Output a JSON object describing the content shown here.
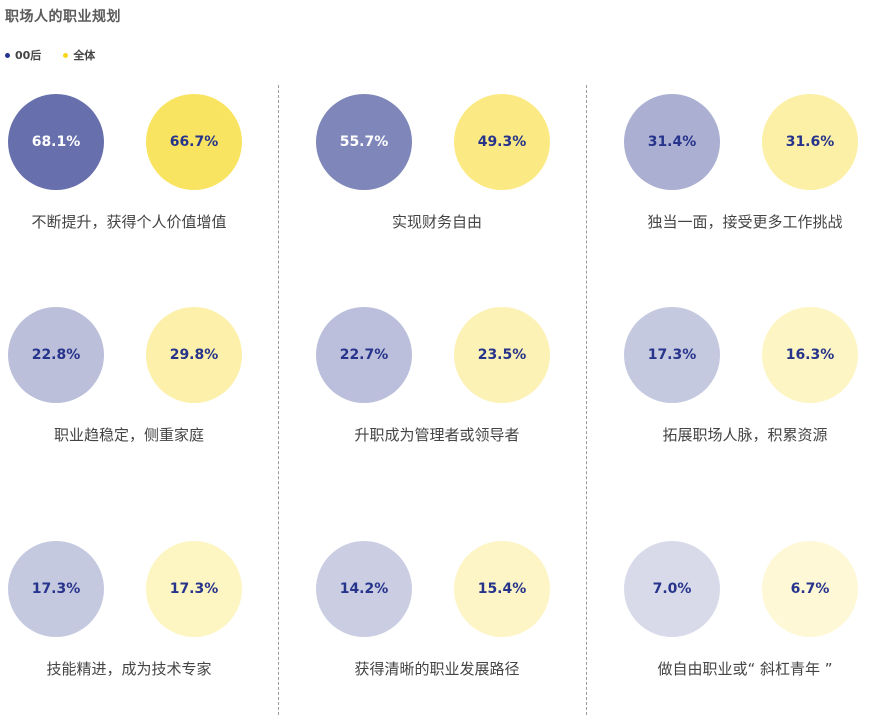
{
  "title": "职场人的职业规划",
  "legend": [
    {
      "label": "00后",
      "color": "#27348b"
    },
    {
      "label": "全体",
      "color": "#f7d81c"
    }
  ],
  "colors": {
    "text_on_circle": "#27348b",
    "label": "#444444"
  },
  "chart_data": {
    "type": "bubble",
    "title": "职场人的职业规划",
    "series": [
      {
        "name": "00后",
        "values": [
          68.1,
          55.7,
          31.4,
          22.8,
          22.7,
          17.3,
          17.3,
          14.2,
          7.0
        ]
      },
      {
        "name": "全体",
        "values": [
          66.7,
          49.3,
          31.6,
          29.8,
          23.5,
          16.3,
          17.3,
          15.4,
          6.7
        ]
      }
    ],
    "categories": [
      "不断提升，获得个人价值增值",
      "实现财务自由",
      "独当一面，接受更多工作挑战",
      "职业趋稳定，侧重家庭",
      "升职成为管理者或领导者",
      "拓展职场人脉，积累资源",
      "技能精进，成为技术专家",
      "获得清晰的职业发展路径",
      "做自由职业或“ 斜杠青年 ”"
    ],
    "items": [
      {
        "label": "不断提升，获得个人价值增值",
        "gen00": 68.1,
        "all": 66.7,
        "gen00_text": "68.1%",
        "all_text": "66.7%"
      },
      {
        "label": "实现财务自由",
        "gen00": 55.7,
        "all": 49.3,
        "gen00_text": "55.7%",
        "all_text": "49.3%"
      },
      {
        "label": "独当一面，接受更多工作挑战",
        "gen00": 31.4,
        "all": 31.6,
        "gen00_text": "31.4%",
        "all_text": "31.6%"
      },
      {
        "label": "职业趋稳定，侧重家庭",
        "gen00": 22.8,
        "all": 29.8,
        "gen00_text": "22.8%",
        "all_text": "29.8%"
      },
      {
        "label": "升职成为管理者或领导者",
        "gen00": 22.7,
        "all": 23.5,
        "gen00_text": "22.7%",
        "all_text": "23.5%"
      },
      {
        "label": "拓展职场人脉，积累资源",
        "gen00": 17.3,
        "all": 16.3,
        "gen00_text": "17.3%",
        "all_text": "16.3%"
      },
      {
        "label": "技能精进，成为技术专家",
        "gen00": 17.3,
        "all": 17.3,
        "gen00_text": "17.3%",
        "all_text": "17.3%"
      },
      {
        "label": "获得清晰的职业发展路径",
        "gen00": 14.2,
        "all": 15.4,
        "gen00_text": "14.2%",
        "all_text": "15.4%"
      },
      {
        "label": "做自由职业或“ 斜杠青年 ”",
        "gen00": 7.0,
        "all": 6.7,
        "gen00_text": "7.0%",
        "all_text": "6.7%"
      }
    ]
  }
}
